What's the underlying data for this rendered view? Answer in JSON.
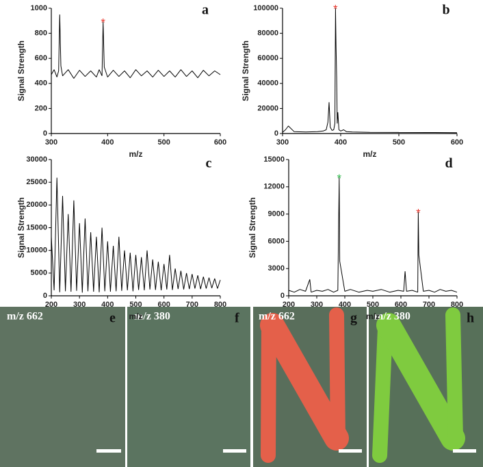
{
  "chart_data": [
    {
      "type": "line",
      "label": "a",
      "x_label": "m/z",
      "y_label": "Signal Strength",
      "xlim": [
        300,
        600
      ],
      "xticks": [
        300,
        400,
        500,
        600
      ],
      "ylim": [
        0,
        1000
      ],
      "yticks": [
        0,
        200,
        400,
        600,
        800,
        1000
      ],
      "series": [
        {
          "color": "#000000",
          "x": [
            300,
            305,
            310,
            313,
            315,
            317,
            320,
            330,
            340,
            350,
            360,
            370,
            380,
            385,
            390,
            392,
            394,
            400,
            410,
            420,
            430,
            440,
            450,
            460,
            470,
            480,
            490,
            500,
            510,
            520,
            530,
            540,
            550,
            560,
            570,
            580,
            590,
            600
          ],
          "values": [
            470,
            510,
            450,
            500,
            950,
            540,
            460,
            510,
            440,
            505,
            455,
            500,
            450,
            510,
            460,
            890,
            530,
            450,
            505,
            455,
            500,
            445,
            510,
            460,
            500,
            450,
            505,
            455,
            500,
            450,
            510,
            455,
            500,
            445,
            505,
            460,
            500,
            470
          ]
        }
      ],
      "annotations": [
        {
          "text": "*",
          "x": 392,
          "y": 890,
          "color": "#e8352b"
        }
      ]
    },
    {
      "type": "line",
      "label": "b",
      "x_label": "m/z",
      "y_label": "Signal Strength",
      "xlim": [
        300,
        600
      ],
      "xticks": [
        300,
        400,
        500,
        600
      ],
      "ylim": [
        0,
        100000
      ],
      "yticks": [
        0,
        20000,
        40000,
        60000,
        80000,
        100000
      ],
      "series": [
        {
          "color": "#000000",
          "x": [
            300,
            305,
            310,
            320,
            340,
            360,
            370,
            375,
            378,
            380,
            382,
            385,
            388,
            390,
            391,
            392,
            393,
            394,
            395,
            397,
            400,
            405,
            410,
            420,
            450,
            500,
            550,
            600
          ],
          "values": [
            1000,
            3000,
            6000,
            1500,
            1200,
            1500,
            2000,
            3000,
            9000,
            25000,
            5000,
            2500,
            3000,
            8000,
            100000,
            69000,
            45000,
            8000,
            17000,
            3000,
            2000,
            3000,
            1500,
            1200,
            1000,
            900,
            800,
            700
          ]
        }
      ],
      "annotations": [
        {
          "text": "*",
          "x": 391,
          "y": 100000,
          "color": "#e8352b"
        }
      ]
    },
    {
      "type": "line",
      "label": "c",
      "x_label": "m/z",
      "y_label": "Signal Strength",
      "xlim": [
        200,
        800
      ],
      "xticks": [
        200,
        300,
        400,
        500,
        600,
        700,
        800
      ],
      "ylim": [
        0,
        30000
      ],
      "yticks": [
        0,
        5000,
        10000,
        15000,
        20000,
        25000,
        30000
      ],
      "series": [
        {
          "color": "#000000",
          "x": [
            200,
            210,
            220,
            230,
            240,
            250,
            260,
            270,
            280,
            290,
            300,
            310,
            320,
            330,
            340,
            350,
            360,
            370,
            380,
            390,
            400,
            410,
            420,
            430,
            440,
            450,
            460,
            470,
            480,
            490,
            500,
            510,
            520,
            530,
            540,
            550,
            560,
            570,
            580,
            590,
            600,
            610,
            620,
            630,
            640,
            650,
            660,
            670,
            680,
            690,
            700,
            710,
            720,
            730,
            740,
            750,
            760,
            770,
            780,
            790,
            800
          ],
          "values": [
            13000,
            1200,
            26000,
            800,
            22000,
            1000,
            18000,
            900,
            21000,
            1100,
            16000,
            700,
            17000,
            1000,
            14000,
            900,
            13000,
            800,
            15000,
            1000,
            12000,
            900,
            11000,
            1000,
            13000,
            1100,
            10000,
            1200,
            9500,
            1000,
            9000,
            1300,
            8500,
            1200,
            10000,
            1400,
            8000,
            1300,
            7500,
            1200,
            7000,
            1400,
            9000,
            1300,
            6000,
            1500,
            5500,
            1400,
            5000,
            1500,
            4800,
            1600,
            4500,
            1500,
            4200,
            1600,
            4000,
            1700,
            3800,
            1600,
            3500
          ]
        }
      ],
      "annotations": []
    },
    {
      "type": "line",
      "label": "d",
      "x_label": "m/z",
      "y_label": "Signal Strength",
      "xlim": [
        200,
        800
      ],
      "xticks": [
        200,
        300,
        400,
        500,
        600,
        700,
        800
      ],
      "ylim": [
        0,
        15000
      ],
      "yticks": [
        0,
        3000,
        6000,
        9000,
        12000,
        15000
      ],
      "series": [
        {
          "color": "#000000",
          "x": [
            200,
            220,
            240,
            260,
            275,
            280,
            300,
            320,
            340,
            360,
            375,
            380,
            382,
            400,
            420,
            450,
            480,
            500,
            530,
            560,
            590,
            610,
            615,
            620,
            640,
            660,
            662,
            664,
            680,
            700,
            720,
            740,
            760,
            780,
            800
          ],
          "values": [
            600,
            400,
            700,
            500,
            1800,
            400,
            600,
            500,
            700,
            400,
            600,
            13000,
            3800,
            500,
            700,
            400,
            600,
            500,
            700,
            400,
            600,
            500,
            2700,
            500,
            600,
            400,
            9200,
            4500,
            500,
            600,
            400,
            700,
            500,
            600,
            400
          ]
        }
      ],
      "annotations": [
        {
          "text": "*",
          "x": 380,
          "y": 13000,
          "color": "#2fb84a"
        },
        {
          "text": "*",
          "x": 662,
          "y": 9200,
          "color": "#e8352b"
        }
      ]
    }
  ],
  "panels": [
    {
      "caption": "m/z 662",
      "label": "e"
    },
    {
      "caption": "m/z 380",
      "label": "f"
    },
    {
      "caption": "m/z 662",
      "label": "g"
    },
    {
      "caption": "m/z 380",
      "label": "h"
    }
  ]
}
